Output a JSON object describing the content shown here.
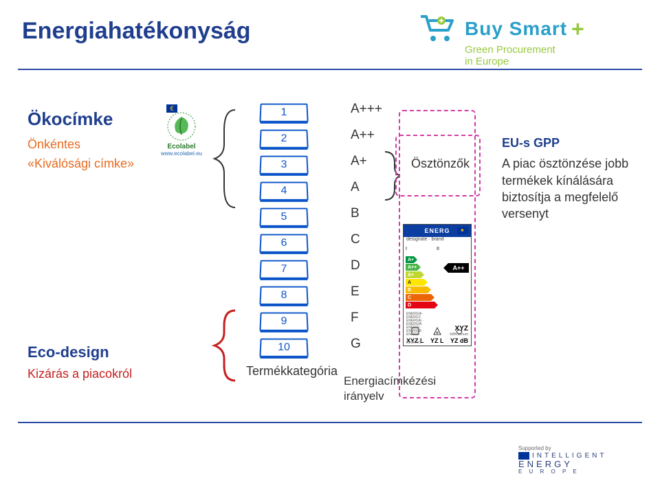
{
  "title": "Energiahatékonyság",
  "logo": {
    "name": "Buy Smart",
    "plus": "+",
    "subtitle1": "Green Procurement",
    "subtitle2": "in Europe",
    "color_main": "#2a9fc9",
    "color_plus": "#97c93d"
  },
  "left": {
    "ecolabel_heading": "Ökocímke",
    "ecolabel_sub1": "Önkéntes",
    "ecolabel_sub2": "«Kiválósági címke»",
    "ecodesign_heading": "Eco-design",
    "ecodesign_sub": "Kizárás a piacokról"
  },
  "eu_ecolabel": {
    "text": "Ecolabel",
    "url": "www.ecolabel.eu"
  },
  "product_col": {
    "caption": "Termékkategória",
    "boxes": [
      "1",
      "2",
      "3",
      "4",
      "5",
      "6",
      "7",
      "8",
      "9",
      "10"
    ],
    "box_border": "#0954c8",
    "box_text": "#0954c8"
  },
  "energy_classes": [
    "A+++",
    "A++",
    "A+",
    "A",
    "B",
    "C",
    "D",
    "E",
    "F",
    "G"
  ],
  "directive": {
    "line1": "Energiacímkézési",
    "line2": "irányelv"
  },
  "incentives": {
    "label": "Ösztönzők",
    "border_color": "#d23aa8"
  },
  "energy_label": {
    "header": "ENERG",
    "sub_left": "designate · brand",
    "roman_left": "I",
    "roman_right": "II",
    "indicator": "A++",
    "arrows": [
      {
        "cls": "arrow-a3",
        "txt": "A+++"
      },
      {
        "cls": "arrow-a2",
        "txt": "A++"
      },
      {
        "cls": "arrow-a1",
        "txt": "A+"
      },
      {
        "cls": "arrow-a",
        "txt": "A"
      },
      {
        "cls": "arrow-b",
        "txt": "B"
      },
      {
        "cls": "arrow-c",
        "txt": "C"
      },
      {
        "cls": "arrow-d",
        "txt": "D"
      }
    ],
    "xyz": "XYZ",
    "kwh": "kWh/annum",
    "bottom": [
      "XYZ L",
      "YZ L",
      "YZ dB"
    ],
    "pid": "2010/XYZ"
  },
  "gpp": {
    "heading": "EU-s  GPP",
    "body": "A piac ösztönzése jobb termékek kínálására biztosítja a megfelelő versenyt"
  },
  "footer": {
    "supported": "Supported by",
    "l1": "INTELLIGENT",
    "l2": "ENERGY",
    "l3": "E  U  R  O  P  E"
  },
  "colors": {
    "title": "#1f3e8e",
    "rule": "#2a4aa8",
    "orange": "#e86a1f",
    "red": "#c62020"
  }
}
